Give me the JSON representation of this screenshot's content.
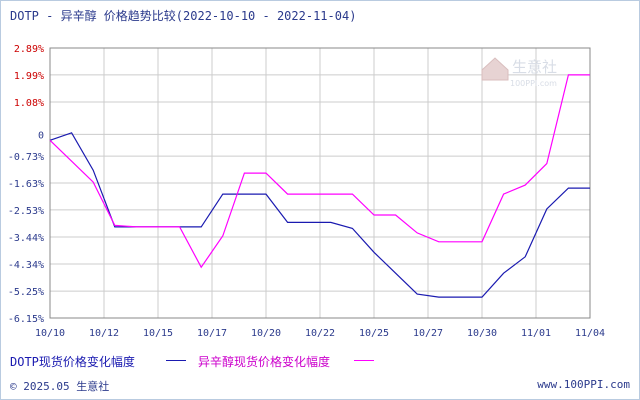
{
  "title": "DOTP - 异辛醇 价格趋势比较(2022-10-10 - 2022-11-04)",
  "footer": {
    "copyright": "© 2025.05 生意社",
    "site": "www.100PPI.com"
  },
  "watermark": {
    "name": "生意社",
    "url": "100PPI.com"
  },
  "legend": [
    {
      "label": "DOTP现货价格变化幅度",
      "color": "#1a1ab0"
    },
    {
      "label": "异辛醇现货价格变化幅度",
      "color": "#ff00ff"
    }
  ],
  "chart_data": {
    "type": "line",
    "title": "DOTP - 异辛醇 价格趋势比较(2022-10-10 - 2022-11-04)",
    "xlabel": "",
    "ylabel": "",
    "x_tick_labels": [
      "10/10",
      "10/12",
      "10/15",
      "10/17",
      "10/20",
      "10/22",
      "10/25",
      "10/27",
      "10/30",
      "11/01",
      "11/04"
    ],
    "y_tick_labels": [
      "2.89%",
      "1.99%",
      "1.08%",
      "0",
      "-0.73%",
      "-1.63%",
      "-2.53%",
      "-3.44%",
      "-4.34%",
      "-5.25%",
      "-6.15%"
    ],
    "y_ticks": [
      2.89,
      1.99,
      1.08,
      0,
      -0.73,
      -1.63,
      -2.53,
      -3.44,
      -4.34,
      -5.25,
      -6.15
    ],
    "ylim": [
      -6.15,
      2.89
    ],
    "grid": true,
    "legend_position": "bottom-left",
    "x": [
      "10/10",
      "10/11",
      "10/12",
      "10/13",
      "10/14",
      "10/15",
      "10/16",
      "10/17",
      "10/18",
      "10/19",
      "10/20",
      "10/21",
      "10/22",
      "10/23",
      "10/24",
      "10/25",
      "10/26",
      "10/27",
      "10/28",
      "10/29",
      "10/30",
      "10/31",
      "11/01",
      "11/02",
      "11/03",
      "11/04"
    ],
    "series": [
      {
        "name": "DOTP现货价格变化幅度",
        "color": "#1a1ab0",
        "values": [
          -0.2,
          0.05,
          -1.2,
          -3.1,
          -3.1,
          -3.1,
          -3.1,
          -3.1,
          -2.0,
          -2.0,
          -2.0,
          -2.95,
          -2.95,
          -2.95,
          -3.15,
          -3.95,
          -4.65,
          -5.35,
          -5.45,
          -5.45,
          -5.45,
          -4.65,
          -4.1,
          -2.5,
          -1.8,
          -1.8
        ]
      },
      {
        "name": "异辛醇现货价格变化幅度",
        "color": "#ff00ff",
        "values": [
          -0.2,
          -0.9,
          -1.6,
          -3.05,
          -3.1,
          -3.1,
          -3.1,
          -4.45,
          -3.4,
          -1.3,
          -1.3,
          -2.0,
          -2.0,
          -2.0,
          -2.0,
          -2.7,
          -2.7,
          -3.3,
          -3.6,
          -3.6,
          -3.6,
          -2.0,
          -1.7,
          -0.98,
          1.99,
          1.99
        ]
      }
    ]
  }
}
